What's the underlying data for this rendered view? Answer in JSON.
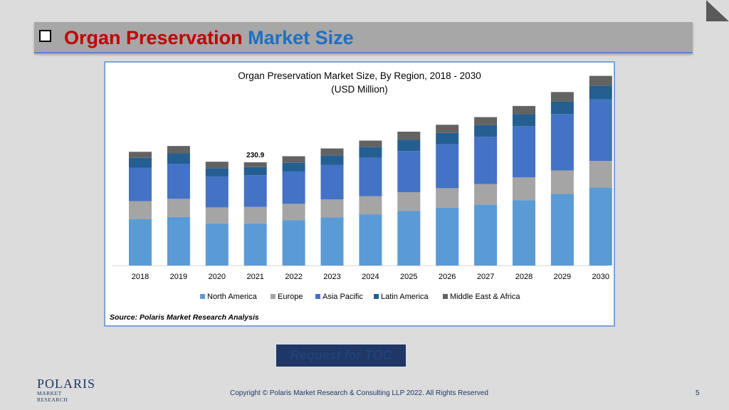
{
  "header": {
    "title_part1": "Organ Preservation",
    "title_part2": "Market Size"
  },
  "chart_data": {
    "type": "bar",
    "stacked": true,
    "title": "Organ Preservation Market Size, By Region, 2018 - 2030",
    "subtitle": "(USD Million)",
    "categories": [
      "2018",
      "2019",
      "2020",
      "2021",
      "2022",
      "2023",
      "2024",
      "2025",
      "2026",
      "2027",
      "2028",
      "2029",
      "2030"
    ],
    "series": [
      {
        "name": "North America",
        "color": "#5b9bd5",
        "values": [
          103.6,
          108.8,
          94.2,
          94.2,
          101.1,
          107.6,
          114.5,
          121.8,
          129.1,
          136.0,
          146.3,
          160.0,
          174.3
        ]
      },
      {
        "name": "Europe",
        "color": "#a5a5a5",
        "values": [
          40.4,
          40.4,
          35.8,
          36.9,
          36.9,
          40.4,
          40.4,
          42.3,
          43.9,
          46.4,
          50.8,
          52.7,
          59.6
        ]
      },
      {
        "name": "Asia Pacific",
        "color": "#4472c4",
        "values": [
          75.0,
          78.5,
          69.2,
          70.7,
          72.3,
          77.3,
          86.2,
          91.9,
          98.1,
          105.7,
          114.5,
          126.1,
          137.7
        ]
      },
      {
        "name": "Latin America",
        "color": "#255e91",
        "values": [
          21.9,
          23.1,
          18.4,
          18.4,
          19.6,
          21.2,
          23.8,
          25.0,
          25.4,
          25.8,
          26.9,
          28.1,
          30.8
        ]
      },
      {
        "name": "Middle East & Africa",
        "color": "#636363",
        "values": [
          13.5,
          16.6,
          14.6,
          10.7,
          14.6,
          15.4,
          14.6,
          18.4,
          18.4,
          18.1,
          18.4,
          21.2,
          21.9
        ]
      }
    ],
    "data_labels": [
      {
        "category": "2021",
        "text": "230.9"
      }
    ],
    "ylim": [
      0,
      430
    ],
    "grid": false,
    "legend": "bottom",
    "source": "Source: Polaris  Market Research Analysis"
  },
  "toc_button": {
    "label": "Request for TOC"
  },
  "footer": {
    "logo_top": "POLARIS",
    "logo_bottom": "MARKET RESEARCH",
    "copyright": "Copyright © Polaris Market Research & Consulting LLP 2022. All Rights Reserved",
    "page_number": "5"
  },
  "colors": {
    "title_red": "#c00000",
    "title_blue": "#1f6fc4",
    "title_bar": "#a7a7a7",
    "toc_bg": "#1f3766"
  }
}
